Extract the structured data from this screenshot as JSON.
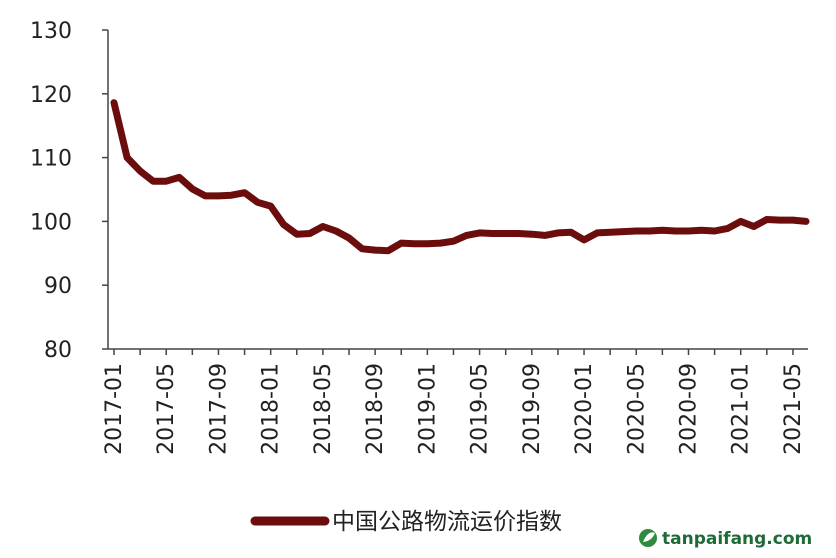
{
  "chart_data": {
    "type": "line",
    "title": "",
    "xlabel": "",
    "ylabel": "",
    "ylim": [
      80,
      130
    ],
    "yticks": [
      80,
      90,
      100,
      110,
      120,
      130
    ],
    "x_tick_labels": [
      "2017-01",
      "2017-05",
      "2017-09",
      "2018-01",
      "2018-05",
      "2018-09",
      "2019-01",
      "2019-05",
      "2019-09",
      "2020-01",
      "2020-05",
      "2020-09",
      "2021-01",
      "2021-05"
    ],
    "x": [
      "2017-01",
      "2017-02",
      "2017-03",
      "2017-04",
      "2017-05",
      "2017-06",
      "2017-07",
      "2017-08",
      "2017-09",
      "2017-10",
      "2017-11",
      "2017-12",
      "2018-01",
      "2018-02",
      "2018-03",
      "2018-04",
      "2018-05",
      "2018-06",
      "2018-07",
      "2018-08",
      "2018-09",
      "2018-10",
      "2018-11",
      "2018-12",
      "2019-01",
      "2019-02",
      "2019-03",
      "2019-04",
      "2019-05",
      "2019-06",
      "2019-07",
      "2019-08",
      "2019-09",
      "2019-10",
      "2019-11",
      "2019-12",
      "2020-01",
      "2020-02",
      "2020-03",
      "2020-04",
      "2020-05",
      "2020-06",
      "2020-07",
      "2020-08",
      "2020-09",
      "2020-10",
      "2020-11",
      "2020-12",
      "2021-01",
      "2021-02",
      "2021-03",
      "2021-04",
      "2021-05",
      "2021-06"
    ],
    "series": [
      {
        "name": "中国公路物流运价指数",
        "color": "#6b0d0d",
        "values": [
          118.6,
          110.0,
          107.9,
          106.3,
          106.3,
          106.9,
          105.1,
          104.0,
          104.0,
          104.1,
          104.5,
          103.0,
          102.4,
          99.5,
          98.0,
          98.1,
          99.2,
          98.5,
          97.4,
          95.7,
          95.5,
          95.4,
          96.6,
          96.5,
          96.5,
          96.6,
          96.9,
          97.8,
          98.2,
          98.1,
          98.1,
          98.1,
          98.0,
          97.8,
          98.2,
          98.3,
          97.1,
          98.2,
          98.3,
          98.4,
          98.5,
          98.5,
          98.6,
          98.5,
          98.5,
          98.6,
          98.5,
          98.9,
          100.0,
          99.2,
          100.3,
          100.2,
          100.2,
          100.0
        ]
      }
    ],
    "legend_position": "bottom",
    "grid": false
  },
  "watermark": {
    "text": "tanpaifang.com",
    "icon": "leaf-logo-icon",
    "color": "#1f6b37"
  }
}
